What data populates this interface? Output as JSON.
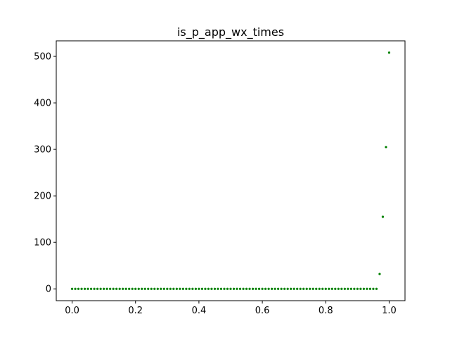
{
  "chart_data": {
    "type": "scatter",
    "title": "is_p_app_wx_times",
    "xlabel": "",
    "ylabel": "",
    "xlim": [
      -0.05,
      1.05
    ],
    "ylim": [
      -25.4,
      533.4
    ],
    "grid": false,
    "legend": "none",
    "x_ticks": [
      "0.0",
      "0.2",
      "0.4",
      "0.6",
      "0.8",
      "1.0"
    ],
    "y_ticks": [
      "0",
      "100",
      "200",
      "300",
      "400",
      "500"
    ],
    "marker_color": "#008000",
    "series": [
      {
        "x": [
          0.0,
          0.01,
          0.02,
          0.03,
          0.04,
          0.05,
          0.06,
          0.07,
          0.08,
          0.09,
          0.1,
          0.11,
          0.12,
          0.13,
          0.14,
          0.15,
          0.16,
          0.17,
          0.18,
          0.19,
          0.2,
          0.21,
          0.22,
          0.23,
          0.24,
          0.25,
          0.26,
          0.27,
          0.28,
          0.29,
          0.3,
          0.31,
          0.32,
          0.33,
          0.34,
          0.35,
          0.36,
          0.37,
          0.38,
          0.39,
          0.4,
          0.41,
          0.42,
          0.43,
          0.44,
          0.45,
          0.46,
          0.47,
          0.48,
          0.49,
          0.5,
          0.51,
          0.52,
          0.53,
          0.54,
          0.55,
          0.56,
          0.57,
          0.58,
          0.59,
          0.6,
          0.61,
          0.62,
          0.63,
          0.64,
          0.65,
          0.66,
          0.67,
          0.68,
          0.69,
          0.7,
          0.71,
          0.72,
          0.73,
          0.74,
          0.75,
          0.76,
          0.77,
          0.78,
          0.79,
          0.8,
          0.81,
          0.82,
          0.83,
          0.84,
          0.85,
          0.86,
          0.87,
          0.88,
          0.89,
          0.9,
          0.91,
          0.92,
          0.93,
          0.94,
          0.95,
          0.96,
          0.97,
          0.98,
          0.99,
          1.0
        ],
        "y": [
          0,
          0,
          0,
          0,
          0,
          0,
          0,
          0,
          0,
          0,
          0,
          0,
          0,
          0,
          0,
          0,
          0,
          0,
          0,
          0,
          0,
          0,
          0,
          0,
          0,
          0,
          0,
          0,
          0,
          0,
          0,
          0,
          0,
          0,
          0,
          0,
          0,
          0,
          0,
          0,
          0,
          0,
          0,
          0,
          0,
          0,
          0,
          0,
          0,
          0,
          0,
          0,
          0,
          0,
          0,
          0,
          0,
          0,
          0,
          0,
          0,
          0,
          0,
          0,
          0,
          0,
          0,
          0,
          0,
          0,
          0,
          0,
          0,
          0,
          0,
          0,
          0,
          0,
          0,
          0,
          0,
          0,
          0,
          0,
          0,
          0,
          0,
          0,
          0,
          0,
          0,
          0,
          0,
          0,
          0,
          0,
          0,
          32,
          155,
          305,
          508
        ]
      }
    ]
  }
}
